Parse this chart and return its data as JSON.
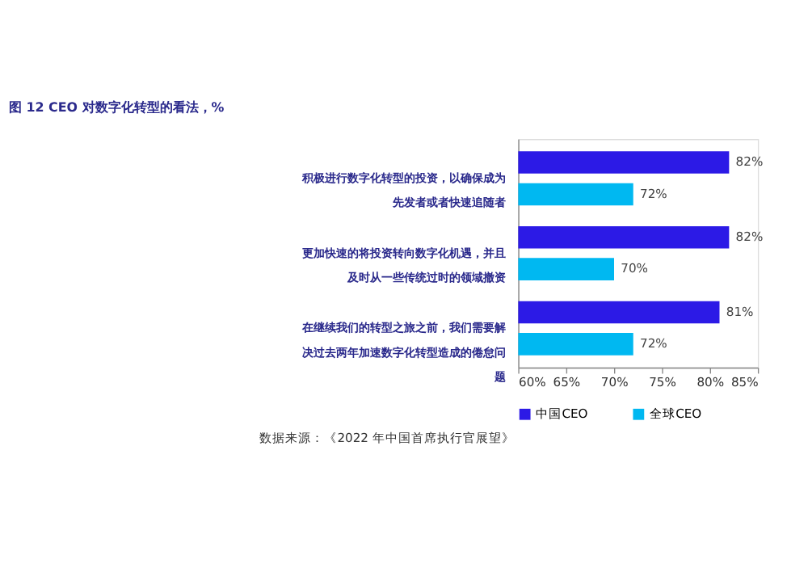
{
  "chart_data": {
    "type": "bar",
    "orientation": "horizontal",
    "title": "图 12  CEO 对数字化转型的看法，%",
    "categories": [
      "积极进行数字化转型的投资，以确保成为先发者或者快速追随者",
      "更加快速的将投资转向数字化机遇，并且及时从一些传统过时的领域撤资",
      "在继续我们的转型之旅之前，我们需要解决过去两年加速数字化转型造成的倦怠问题"
    ],
    "series": [
      {
        "name": "中国CEO",
        "color": "#2c1ae6",
        "values": [
          82,
          82,
          81
        ],
        "value_labels": [
          "82%",
          "82%",
          "81%"
        ]
      },
      {
        "name": "全球CEO",
        "color": "#00b8f1",
        "values": [
          72,
          70,
          72
        ],
        "value_labels": [
          "72%",
          "70%",
          "72%"
        ]
      }
    ],
    "xlim": [
      60,
      85
    ],
    "xticks": [
      {
        "value": 60,
        "label": "60%"
      },
      {
        "value": 65,
        "label": "65%"
      },
      {
        "value": 70,
        "label": "70%"
      },
      {
        "value": 75,
        "label": "75%"
      },
      {
        "value": 80,
        "label": "80%"
      },
      {
        "value": 85,
        "label": "85%"
      }
    ],
    "grid": false,
    "legend": "bottom",
    "annotations": [
      "数据来源：《2022 年中国首席执行官展望》"
    ]
  }
}
